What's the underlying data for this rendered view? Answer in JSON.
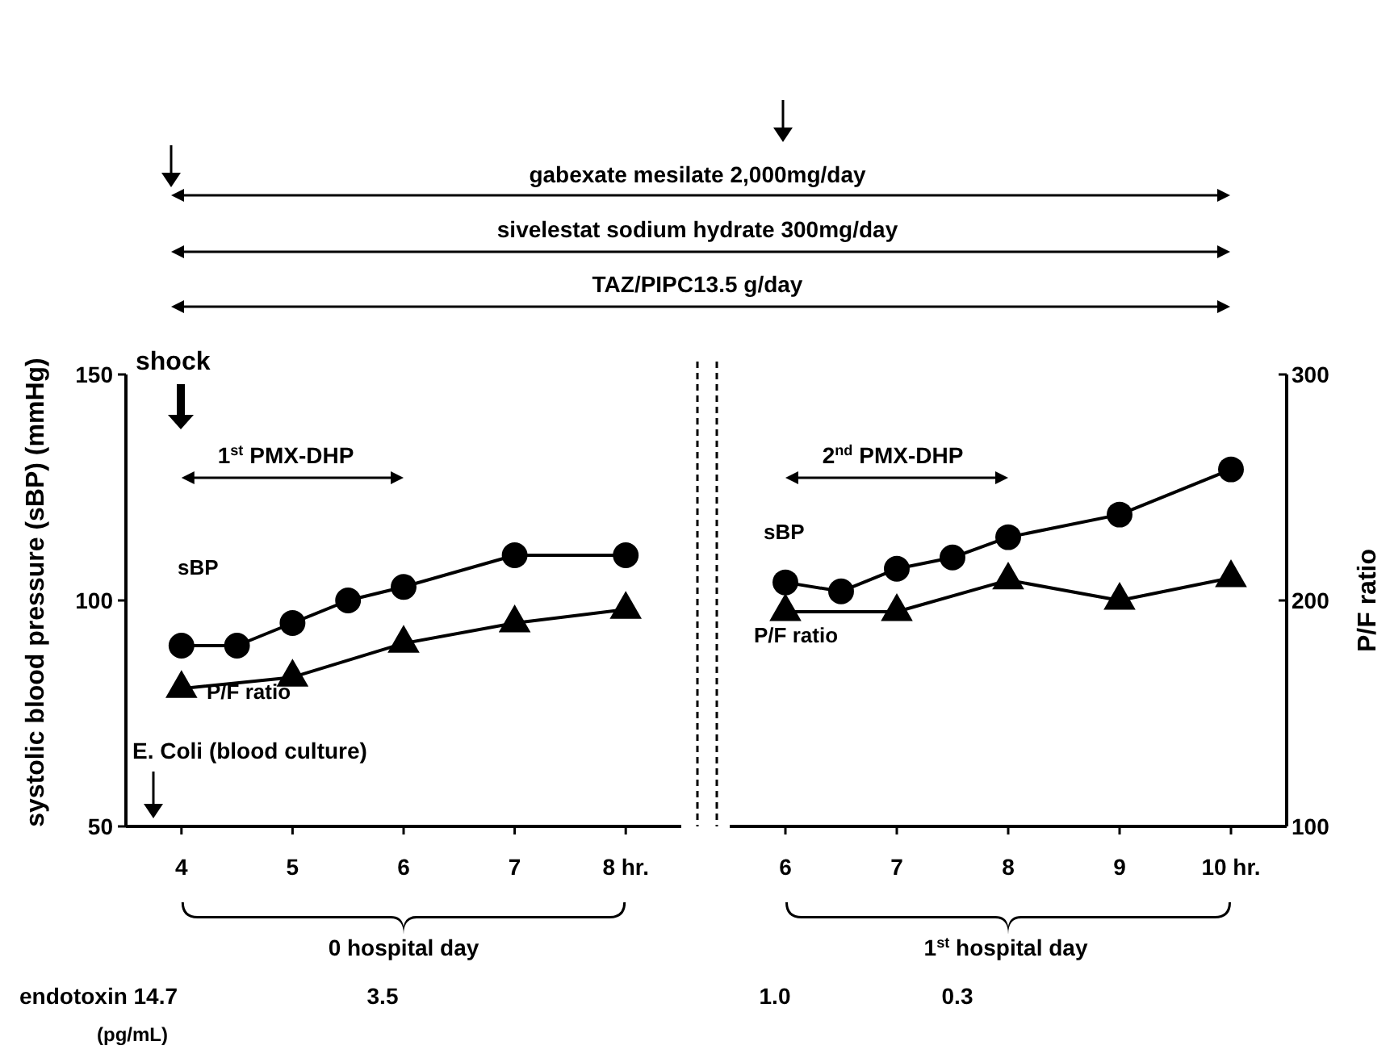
{
  "chart_data": [
    {
      "type": "line",
      "x": [
        4,
        4.5,
        5,
        5.5,
        6,
        7,
        8
      ],
      "xlim": [
        3.5,
        8.5
      ],
      "xticks": [
        4,
        5,
        6,
        7,
        {
          "value": 8,
          "label": "8 hr."
        }
      ],
      "ylim": [
        50,
        150
      ],
      "yticks": [
        50,
        100,
        150
      ],
      "y2lim": [
        100,
        300
      ],
      "ylabel": "systolic blood pressure (sBP) (mmHg)",
      "tick_labels": [
        "x",
        "y"
      ],
      "series": [
        {
          "name": "sBP",
          "color": "#000000",
          "marker": "circle",
          "values": [
            90,
            90,
            95,
            100,
            103,
            110,
            110
          ]
        },
        {
          "name": "P/F ratio",
          "color": "#000000",
          "marker": "triangle",
          "axis": "y2",
          "x": [
            4,
            5,
            6,
            7,
            8
          ],
          "values": [
            161,
            166,
            181,
            190,
            196
          ]
        }
      ],
      "annotations": [
        "gabexate mesilate 2,000mg/day",
        "sivelestat sodium hydrate 300mg/day",
        "TAZ/PIPC13.5 g/day",
        "shock",
        "1$^{st}$ PMX-DHP",
        "E. Coli (blood culture)",
        "0 hospital day",
        "endotoxin 14.7",
        "(pg/mL)",
        "3.5"
      ]
    },
    {
      "type": "line",
      "x": [
        6,
        6.5,
        7,
        7.5,
        8,
        9,
        10
      ],
      "xlim": [
        5.5,
        10.5
      ],
      "xticks": [
        6,
        7,
        8,
        9,
        {
          "value": 10,
          "label": "10 hr."
        }
      ],
      "ylim": [
        50,
        150
      ],
      "y2lim": [
        100,
        300
      ],
      "y2ticks": [
        100,
        200,
        300
      ],
      "y2label": "P/F ratio",
      "tick_labels": [
        "x",
        "y2"
      ],
      "series": [
        {
          "name": "sBP",
          "color": "#000000",
          "marker": "circle",
          "values": [
            104,
            102,
            107,
            109.5,
            114,
            119,
            129
          ]
        },
        {
          "name": "P/F ratio",
          "color": "#000000",
          "marker": "triangle",
          "axis": "y2",
          "x": [
            6,
            7,
            8,
            9,
            10
          ],
          "values": [
            195,
            195,
            209,
            200,
            210
          ]
        }
      ],
      "annotations": [
        "2$^{nd}$ PMX-DHP",
        "1$^{st}$ hospital day",
        "1.0",
        "0.3"
      ]
    }
  ]
}
